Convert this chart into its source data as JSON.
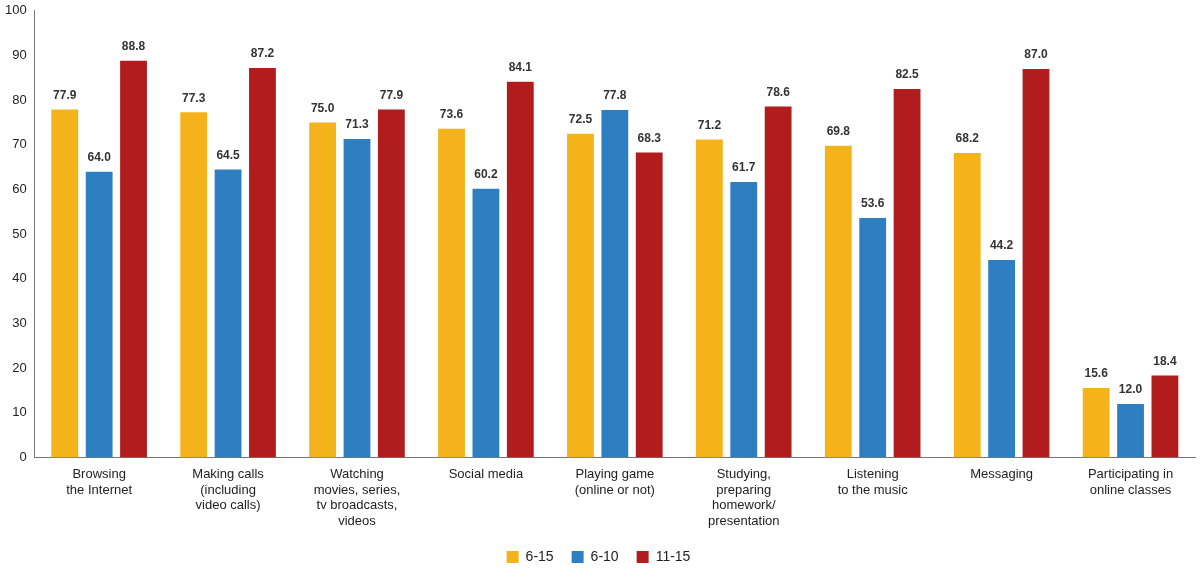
{
  "chart_data": {
    "type": "bar",
    "categories": [
      "Browsing\nthe Internet",
      "Making calls\n(including\nvideo calls)",
      "Watching\nmovies, series,\ntv broadcasts,\nvideos",
      "Social media",
      "Playing game\n(online or not)",
      "Studying,\npreparing\nhomework/\npresentation",
      "Listening\nto the music",
      "Messaging",
      "Participating in\nonline classes"
    ],
    "series": [
      {
        "name": "6-15",
        "color": "#f5b31b",
        "values": [
          77.9,
          77.3,
          75.0,
          73.6,
          72.5,
          71.2,
          69.8,
          68.2,
          15.6
        ],
        "value_labels": [
          "77.9",
          "77.3",
          "75.0",
          "73.6",
          "72.5",
          "71.2",
          "69.8",
          "68.2",
          "15.6"
        ]
      },
      {
        "name": "6-10",
        "color": "#2e7fc2",
        "values": [
          64.0,
          64.5,
          71.3,
          60.2,
          77.8,
          61.7,
          53.6,
          44.2,
          12.0
        ],
        "value_labels": [
          "64.0",
          "64.5",
          "71.3",
          "60.2",
          "77.8",
          "61.7",
          "53.6",
          "44.2",
          "12.0"
        ]
      },
      {
        "name": "11-15",
        "color": "#b11d1d",
        "values": [
          88.8,
          87.2,
          77.9,
          84.1,
          68.3,
          78.6,
          82.5,
          87.0,
          18.4
        ],
        "value_labels": [
          "88.8",
          "87.2",
          "77.9",
          "84.1",
          "68.3",
          "78.6",
          "82.5",
          "87.0",
          "18.4"
        ]
      }
    ],
    "ylim": [
      0,
      100
    ],
    "yticks": [
      0,
      10,
      20,
      30,
      40,
      50,
      60,
      70,
      80,
      90,
      100
    ],
    "grid": false,
    "legend": "bottom"
  }
}
